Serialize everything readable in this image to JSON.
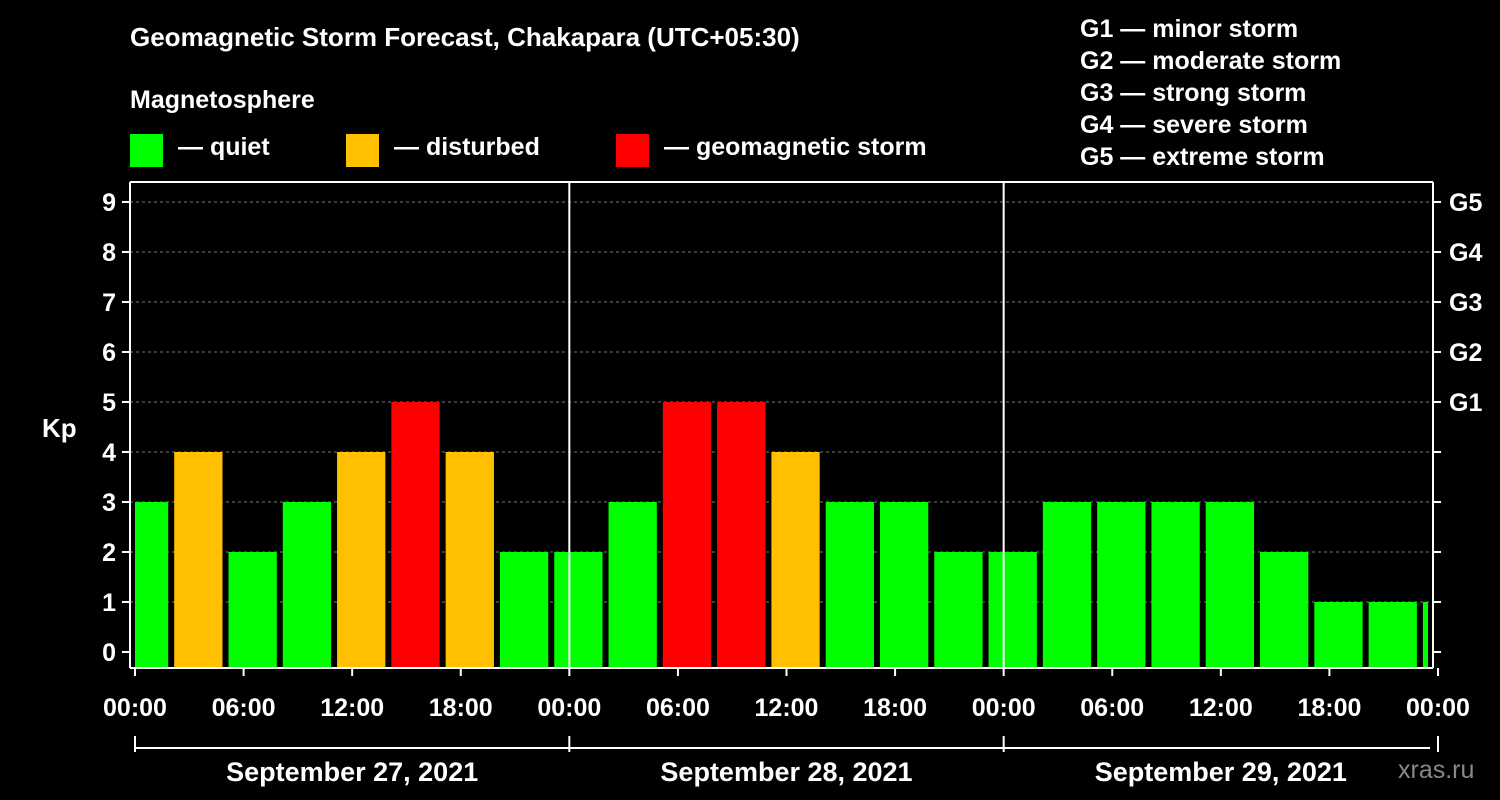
{
  "chart_data": {
    "type": "bar",
    "title": "Geomagnetic Storm Forecast, Chakapara (UTC+05:30)",
    "subtitle": "Magnetosphere",
    "ylabel": "Kp",
    "ylim": [
      0,
      9
    ],
    "yticks": [
      "0",
      "1",
      "2",
      "3",
      "4",
      "5",
      "6",
      "7",
      "8",
      "9"
    ],
    "gscale": [
      {
        "label": "G1",
        "kp": 5
      },
      {
        "label": "G2",
        "kp": 6
      },
      {
        "label": "G3",
        "kp": 7
      },
      {
        "label": "G4",
        "kp": 8
      },
      {
        "label": "G5",
        "kp": 9
      }
    ],
    "legend": [
      {
        "label": "— quiet",
        "color": "#00ff00"
      },
      {
        "label": "— disturbed",
        "color": "#ffc000"
      },
      {
        "label": "— geomagnetic storm",
        "color": "#ff0000"
      }
    ],
    "storm_legend": [
      "G1 — minor storm",
      "G2 — moderate storm",
      "G3 — strong storm",
      "G4 — severe storm",
      "G5 — extreme storm"
    ],
    "xtick_labels": [
      "00:00",
      "06:00",
      "12:00",
      "18:00",
      "00:00",
      "06:00",
      "12:00",
      "18:00",
      "00:00",
      "06:00",
      "12:00",
      "18:00",
      "00:00"
    ],
    "days": [
      "September 27, 2021",
      "September 28, 2021",
      "September 29, 2021"
    ],
    "interval_hours": 3,
    "start_hour_offset": 0.5,
    "kp_values": [
      3,
      4,
      2,
      3,
      4,
      5,
      4,
      2,
      2,
      3,
      5,
      5,
      4,
      3,
      3,
      2,
      2,
      3,
      3,
      3,
      3,
      2,
      1,
      1,
      1
    ],
    "colors": {
      "quiet": "#00ff00",
      "disturbed": "#ffc000",
      "storm": "#ff0000"
    },
    "grid": true
  },
  "watermark": "xras.ru"
}
